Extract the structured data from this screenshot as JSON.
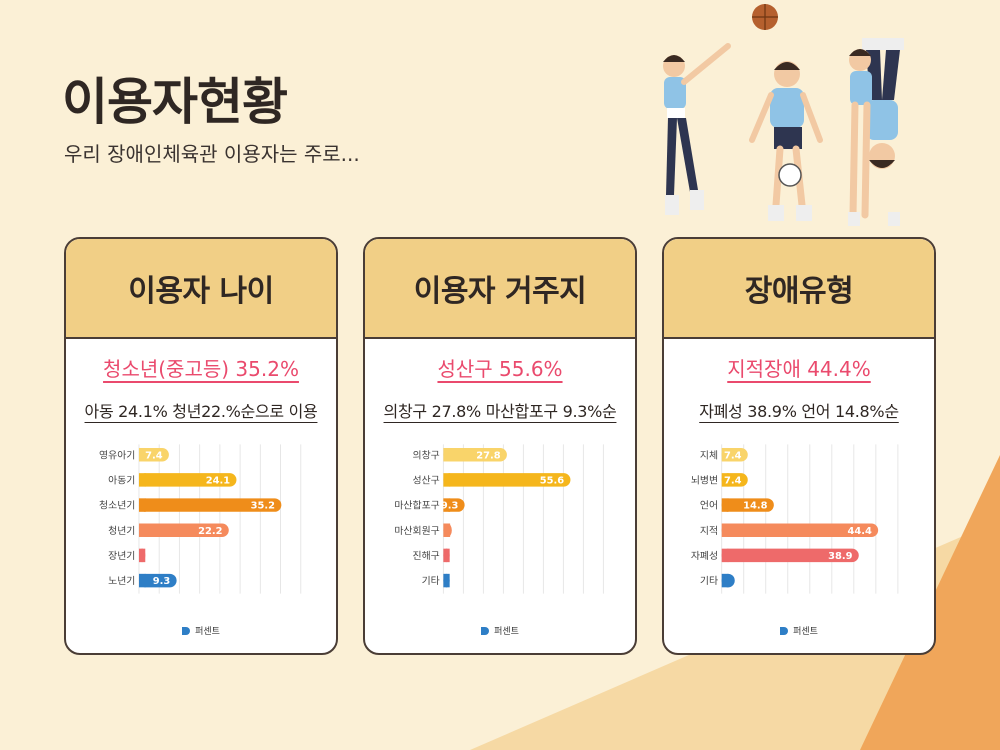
{
  "header": {
    "title": "이용자현황",
    "subtitle": "우리 장애인체육관 이용자는 주로..."
  },
  "colors": {
    "background": "#fbf0d6",
    "card_header": "#f1cf86",
    "highlight_text": "#ea4a6d",
    "legend_dot": "#2e7ec6"
  },
  "cards": [
    {
      "title": "이용자 나이",
      "highlight": "청소년(중고등) 35.2%",
      "detail": "아동 24.1% 청년22.%순으로 이용",
      "legend": "퍼센트"
    },
    {
      "title": "이용자 거주지",
      "highlight": "성산구 55.6%",
      "detail": "의창구 27.8% 마산합포구 9.3%순",
      "legend": "퍼센트"
    },
    {
      "title": "장애유형",
      "highlight": "지적장애 44.4%",
      "detail": "자폐성 38.9% 언어 14.8%순",
      "legend": "퍼센트"
    }
  ],
  "chart_data": [
    {
      "type": "bar",
      "orientation": "horizontal",
      "categories": [
        "영유아기",
        "아동기",
        "청소년기",
        "청년기",
        "장년기",
        "노년기"
      ],
      "series": [
        {
          "name": "퍼센트",
          "values": [
            7.4,
            24.1,
            35.2,
            22.2,
            1.5,
            9.3
          ]
        }
      ],
      "labels": [
        "7.4",
        "24.1",
        "35.2",
        "22.2",
        "",
        "9.3"
      ],
      "colors": [
        "#f9d46a",
        "#f5b61c",
        "#ef8d1a",
        "#f58a5c",
        "#ee6a6a",
        "#2e7ec6"
      ],
      "xlim": [
        0,
        40
      ],
      "grid": true,
      "legend": "bottom"
    },
    {
      "type": "bar",
      "orientation": "horizontal",
      "categories": [
        "의창구",
        "성산구",
        "마산합포구",
        "마산회원구",
        "진해구",
        "기타"
      ],
      "series": [
        {
          "name": "퍼센트",
          "values": [
            27.8,
            55.6,
            9.3,
            3.7,
            1.9,
            1.9
          ]
        }
      ],
      "labels": [
        "27.8",
        "55.6",
        "9.3",
        "",
        "",
        ""
      ],
      "colors": [
        "#f9d46a",
        "#f5b61c",
        "#ef8d1a",
        "#f58a5c",
        "#ee6a6a",
        "#2e7ec6"
      ],
      "xlim": [
        0,
        70
      ],
      "grid": true,
      "legend": "bottom"
    },
    {
      "type": "bar",
      "orientation": "horizontal",
      "categories": [
        "지체",
        "뇌병변",
        "언어",
        "지적",
        "자폐성",
        "기타"
      ],
      "series": [
        {
          "name": "퍼센트",
          "values": [
            7.4,
            7.4,
            14.8,
            44.4,
            38.9,
            3.7
          ]
        }
      ],
      "labels": [
        "7.4",
        "7.4",
        "14.8",
        "44.4",
        "38.9",
        ""
      ],
      "colors": [
        "#f9d46a",
        "#f5b61c",
        "#ef8d1a",
        "#f58a5c",
        "#ee6a6a",
        "#2e7ec6"
      ],
      "xlim": [
        0,
        50
      ],
      "grid": true,
      "legend": "bottom"
    }
  ]
}
